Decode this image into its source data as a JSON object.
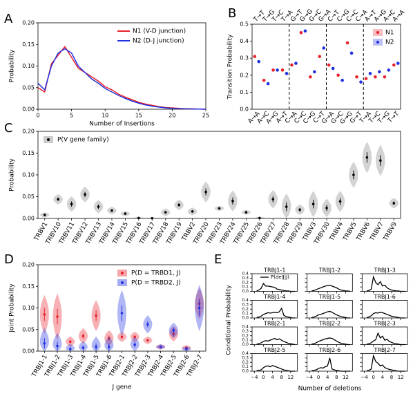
{
  "chart_data": [
    {
      "type": "line",
      "panel_label": "A",
      "xlabel": "Number of Insertions",
      "ylabel": "Probability",
      "x": [
        0,
        1,
        2,
        3,
        4,
        5,
        6,
        7,
        8,
        9,
        10,
        11,
        12,
        13,
        14,
        15,
        16,
        17,
        18,
        19,
        20,
        21,
        22,
        23,
        24,
        25
      ],
      "series": [
        {
          "name": "N1 (V-D junction)",
          "color": "#e8202a",
          "values": [
            0.05,
            0.04,
            0.105,
            0.125,
            0.145,
            0.12,
            0.095,
            0.085,
            0.075,
            0.065,
            0.052,
            0.045,
            0.035,
            0.028,
            0.022,
            0.016,
            0.012,
            0.009,
            0.006,
            0.004,
            0.003,
            0.002,
            0.001,
            0.001,
            0.0005,
            0
          ]
        },
        {
          "name": "N2 (D-J junction)",
          "color": "#2030e0",
          "values": [
            0.06,
            0.045,
            0.1,
            0.13,
            0.14,
            0.13,
            0.1,
            0.085,
            0.07,
            0.06,
            0.048,
            0.04,
            0.032,
            0.025,
            0.019,
            0.014,
            0.01,
            0.007,
            0.005,
            0.003,
            0.002,
            0.001,
            0.001,
            0.0005,
            0.0003,
            0
          ]
        }
      ],
      "xlim": [
        0,
        25
      ],
      "xticks": [
        0,
        5,
        10,
        15,
        20,
        25
      ],
      "ylim": [
        0,
        0.2
      ],
      "yticks": [
        {
          "value": 0,
          "label": "0.00"
        },
        0.05,
        {
          "value": 0.1,
          "label": "0.10"
        },
        0.15,
        {
          "value": 0.2,
          "label": "0.20"
        }
      ]
    },
    {
      "type": "dot",
      "panel_label": "B",
      "ylabel": "Transition Probability",
      "categories": [
        "A→A",
        "A→C",
        "A→G",
        "A→T",
        "C→A",
        "C→C",
        "C→G",
        "C→T",
        "G→A",
        "G→C",
        "G→G",
        "G→T",
        "T→A",
        "T→C",
        "T→G",
        "T→T"
      ],
      "top_categories": [
        "T→T",
        "T→G",
        "T→C",
        "T→A",
        "G→T",
        "G→G",
        "G→C",
        "G→A",
        "C→T",
        "C→G",
        "C→C",
        "C→A",
        "A→T",
        "A→G",
        "A→C",
        "A→A"
      ],
      "series": [
        {
          "name": "N1",
          "color": "#e8202a",
          "values": [
            0.31,
            0.17,
            0.23,
            0.23,
            0.26,
            0.45,
            0.19,
            0.31,
            0.26,
            0.2,
            0.39,
            0.19,
            0.18,
            0.19,
            0.19,
            0.26
          ]
        },
        {
          "name": "N2",
          "color": "#2030e0",
          "values": [
            0.28,
            0.15,
            0.23,
            0.21,
            0.27,
            0.46,
            0.22,
            0.36,
            0.24,
            0.17,
            0.33,
            0.16,
            0.21,
            0.22,
            0.23,
            0.27
          ]
        }
      ],
      "ylim": [
        0,
        0.5
      ],
      "yticks": [
        {
          "value": 0,
          "label": "0.0"
        },
        0.1,
        0.2,
        0.3,
        0.4,
        0.5
      ]
    },
    {
      "type": "violin",
      "panel_label": "C",
      "ylabel": "Probability",
      "categories": [
        "TRBV1",
        "TRBV10",
        "TRBV11",
        "TRBV12",
        "TRBV13",
        "TRBV14",
        "TRBV15",
        "TRBV16",
        "TRBV17",
        "TRBV18",
        "TRBV19",
        "TRBV2",
        "TRBV20",
        "TRBV23",
        "TRBV24",
        "TRBV25",
        "TRBV26",
        "TRBV27",
        "TRBV28",
        "TRBV29",
        "TRBV3",
        "TRBV30",
        "TRBV4",
        "TRBV5",
        "TRBV6",
        "TRBV7",
        "TRBV9"
      ],
      "series": [
        {
          "name": "P(V gene family)",
          "color": "#808080",
          "values": [
            0.008,
            0.044,
            0.033,
            0.055,
            0.027,
            0.018,
            0.011,
            0.001,
            0.0005,
            0.014,
            0.031,
            0.016,
            0.061,
            0.023,
            0.04,
            0.014,
            0.001,
            0.044,
            0.027,
            0.02,
            0.033,
            0.024,
            0.039,
            0.1,
            0.14,
            0.133,
            0.035
          ],
          "errors": [
            0.002,
            0.004,
            0.006,
            0.006,
            0.005,
            0.003,
            0.002,
            0.001,
            0.0005,
            0.003,
            0.004,
            0.003,
            0.008,
            0.002,
            0.008,
            0.002,
            0.001,
            0.007,
            0.01,
            0.004,
            0.01,
            0.007,
            0.008,
            0.01,
            0.012,
            0.012,
            0.004
          ]
        }
      ],
      "ylim": [
        0,
        0.2
      ],
      "yticks": [
        {
          "value": 0,
          "label": "0.00"
        },
        0.05,
        {
          "value": 0.1,
          "label": "0.10"
        },
        0.15,
        {
          "value": 0.2,
          "label": "0.20"
        }
      ]
    },
    {
      "type": "violin",
      "panel_label": "D",
      "ylabel": "Joint Probability",
      "xlabel": "J gene",
      "categories": [
        "TRBJ1-1",
        "TRBJ1-2",
        "TRBJ1-3",
        "TRBJ1-4",
        "TRBJ1-5",
        "TRBJ1-6",
        "TRBJ2-1",
        "TRBJ2-2",
        "TRBJ2-3",
        "TRBJ2-4",
        "TRBJ2-5",
        "TRBJ2-6",
        "TRBJ2-7"
      ],
      "series": [
        {
          "name": "P(D = TRBD1, J)",
          "color": "#e8202a",
          "values": [
            0.085,
            0.08,
            0.022,
            0.035,
            0.082,
            0.03,
            0.033,
            0.033,
            0.025,
            0.01,
            0.04,
            0.008,
            0.11
          ],
          "errors": [
            0.015,
            0.018,
            0.004,
            0.006,
            0.012,
            0.006,
            0.004,
            0.004,
            0.003,
            0.002,
            0.006,
            0.002,
            0.012
          ]
        },
        {
          "name": "P(D = TRBD2, J)",
          "color": "#2030e0",
          "values": [
            0.018,
            0.012,
            0.005,
            0.008,
            0.01,
            0.01,
            0.088,
            0.015,
            0.062,
            0.01,
            0.048,
            0.005,
            0.1
          ],
          "errors": [
            0.012,
            0.01,
            0.004,
            0.005,
            0.008,
            0.008,
            0.018,
            0.006,
            0.007,
            0.002,
            0.006,
            0.002,
            0.018
          ]
        }
      ],
      "ylim": [
        0,
        0.2
      ],
      "yticks": [
        {
          "value": 0,
          "label": "0.00"
        },
        0.05,
        {
          "value": 0.1,
          "label": "0.10"
        },
        0.15,
        {
          "value": 0.2,
          "label": "0.20"
        }
      ]
    },
    {
      "type": "multiples",
      "panel_label": "E",
      "ylabel": "Conditional Probability",
      "xlabel": "Number of deletions",
      "legend": "P(delJ|J)",
      "color": "#000000",
      "x": [
        -3,
        -2,
        -1,
        0,
        1,
        2,
        3,
        4,
        5,
        6,
        7,
        8,
        9,
        10,
        11,
        12,
        13,
        14
      ],
      "panels": [
        {
          "title": "TRBJ1-1",
          "values": [
            0.01,
            0.03,
            0.07,
            0.18,
            0.12,
            0.12,
            0.11,
            0.1,
            0.09,
            0.05,
            0.04,
            0.03,
            0.02,
            0.01,
            0.01,
            0,
            0,
            0
          ]
        },
        {
          "title": "TRBJ1-2",
          "values": [
            0.01,
            0.02,
            0.04,
            0.06,
            0.08,
            0.1,
            0.12,
            0.13,
            0.14,
            0.12,
            0.1,
            0.08,
            0.05,
            0.03,
            0.02,
            0.01,
            0.01,
            0
          ]
        },
        {
          "title": "TRBJ1-3",
          "values": [
            0.01,
            0.02,
            0.05,
            0.33,
            0.2,
            0.15,
            0.22,
            0.12,
            0.14,
            0.08,
            0.05,
            0.03,
            0.02,
            0.01,
            0.01,
            0,
            0,
            0
          ]
        },
        {
          "title": "TRBJ1-4",
          "values": [
            0.01,
            0.02,
            0.04,
            0.08,
            0.1,
            0.12,
            0.11,
            0.12,
            0.13,
            0.12,
            0.14,
            0.22,
            0.06,
            0.03,
            0.02,
            0.01,
            0,
            0
          ]
        },
        {
          "title": "TRBJ1-5",
          "values": [
            0.01,
            0.02,
            0.04,
            0.07,
            0.08,
            0.1,
            0.12,
            0.14,
            0.15,
            0.13,
            0.1,
            0.07,
            0.05,
            0.03,
            0.02,
            0.01,
            0,
            0
          ]
        },
        {
          "title": "TRBJ1-6",
          "values": [
            0.01,
            0.02,
            0.05,
            0.1,
            0.12,
            0.11,
            0.13,
            0.12,
            0.1,
            0.08,
            0.06,
            0.04,
            0.03,
            0.02,
            0.01,
            0,
            0,
            0
          ]
        },
        {
          "title": "TRBJ2-1",
          "values": [
            0.01,
            0.02,
            0.04,
            0.07,
            0.09,
            0.08,
            0.1,
            0.12,
            0.14,
            0.11,
            0.13,
            0.1,
            0.07,
            0.05,
            0.03,
            0.02,
            0.01,
            0
          ]
        },
        {
          "title": "TRBJ2-2",
          "values": [
            0.01,
            0.02,
            0.04,
            0.07,
            0.09,
            0.11,
            0.13,
            0.14,
            0.15,
            0.14,
            0.11,
            0.08,
            0.05,
            0.03,
            0.02,
            0.01,
            0,
            0
          ]
        },
        {
          "title": "TRBJ2-3",
          "values": [
            0.01,
            0.02,
            0.04,
            0.08,
            0.11,
            0.26,
            0.15,
            0.19,
            0.1,
            0.12,
            0.07,
            0.05,
            0.03,
            0.02,
            0.01,
            0,
            0,
            0
          ]
        },
        {
          "title": "TRBJ2-5",
          "values": [
            0.01,
            0.02,
            0.03,
            0.08,
            0.11,
            0.12,
            0.1,
            0.13,
            0.11,
            0.09,
            0.07,
            0.05,
            0.03,
            0.02,
            0.01,
            0,
            0,
            0
          ]
        },
        {
          "title": "TRBJ2-6",
          "values": [
            0.01,
            0.02,
            0.03,
            0.06,
            0.08,
            0.07,
            0.1,
            0.12,
            0.3,
            0.05,
            0.03,
            0.02,
            0.01,
            0,
            0,
            0,
            0,
            0
          ]
        },
        {
          "title": "TRBJ2-7",
          "values": [
            0.01,
            0.02,
            0.05,
            0.35,
            0.22,
            0.18,
            0.12,
            0.14,
            0.08,
            0.06,
            0.04,
            0.03,
            0.02,
            0.01,
            0,
            0,
            0,
            0
          ]
        }
      ],
      "xlim": [
        -5,
        15
      ],
      "xticks": [
        {
          "value": -4,
          "label": "−4"
        },
        0,
        4,
        8,
        12
      ],
      "ylim": [
        0,
        0.4
      ],
      "yticks": [
        {
          "value": 0,
          "label": "0.0"
        },
        0.1,
        0.2,
        0.3,
        0.4
      ]
    }
  ]
}
